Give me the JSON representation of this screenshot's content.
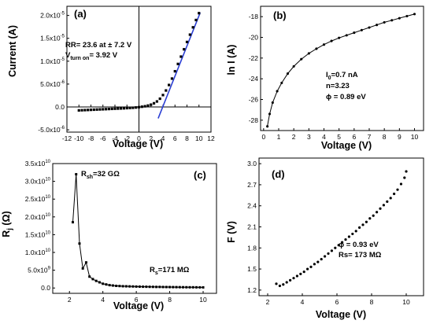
{
  "figure": {
    "panels": [
      "(a)",
      "(b)",
      "(c)",
      "(d)"
    ]
  },
  "chart_data": [
    {
      "id": "a",
      "type": "scatter",
      "panel_label": "(a)",
      "xlabel": "Voltage (V)",
      "ylabel": "Current (A)",
      "xlim": [
        -12,
        12
      ],
      "ylim": [
        -5.5e-06,
        2.2e-05
      ],
      "xticks": [
        -12,
        -10,
        -8,
        -6,
        -4,
        -2,
        0,
        2,
        4,
        6,
        8,
        10,
        12
      ],
      "xtick_labels": [
        "-12",
        "-10",
        "-8",
        "-6",
        "-4",
        "-2",
        "0",
        "2",
        "4",
        "6",
        "8",
        "10",
        "12"
      ],
      "yticks": [
        -5e-06,
        0,
        5e-06,
        1e-05,
        1.5e-05,
        2e-05
      ],
      "ytick_labels": [
        {
          "base": "-5.0x10",
          "exp": "-6"
        },
        {
          "base": "0.0",
          "exp": ""
        },
        {
          "base": "5.0x10",
          "exp": "-6"
        },
        {
          "base": "1.0x10",
          "exp": "-5"
        },
        {
          "base": "1.5x10",
          "exp": "-5"
        },
        {
          "base": "2.0x10",
          "exp": "-5"
        }
      ],
      "annotations": [
        {
          "text": "RR= 23.6 at ± 7.2 V"
        },
        {
          "prefix": "V",
          "sub": "turn on",
          "suffix": "= 3.92 V"
        }
      ],
      "fit_color": "#2b3fd4",
      "series": [
        {
          "x": [
            -10,
            -9.5,
            -9,
            -8.5,
            -8,
            -7.5,
            -7,
            -6.5,
            -6,
            -5.5,
            -5,
            -4.5,
            -4,
            -3.5,
            -3,
            -2.5,
            -2,
            -1.5,
            -1,
            -0.5,
            0,
            0.5,
            1,
            1.5,
            2,
            2.5,
            3,
            3.5,
            4,
            4.5,
            5,
            5.5,
            6,
            6.5,
            7,
            7.5,
            8,
            8.5,
            9,
            9.5,
            10
          ],
          "y": [
            -7.5e-07,
            -7.2e-07,
            -6.9e-07,
            -6.6e-07,
            -6.3e-07,
            -6e-07,
            -5.7e-07,
            -5.4e-07,
            -5.1e-07,
            -4.8e-07,
            -4.5e-07,
            -4.2e-07,
            -3.9e-07,
            -3.6e-07,
            -3.3e-07,
            -3e-07,
            -2.6e-07,
            -2.2e-07,
            -1.8e-07,
            -1.2e-07,
            -5e-08,
            5e-08,
            1.5e-07,
            3e-07,
            5e-07,
            8e-07,
            1.2e-06,
            1.8e-06,
            2.6e-06,
            3.6e-06,
            4.8e-06,
            6.2e-06,
            7.8e-06,
            9.4e-06,
            1.1e-05,
            1.26e-05,
            1.42e-05,
            1.58e-05,
            1.74e-05,
            1.9e-05,
            2.05e-05
          ]
        }
      ],
      "fit_line": {
        "x": [
          3.2,
          10.2
        ],
        "y": [
          -2.5e-06,
          2.06e-05
        ]
      }
    },
    {
      "id": "b",
      "type": "line",
      "panel_label": "(b)",
      "xlabel": "Voltage (V)",
      "ylabel": "ln I (A)",
      "xlim": [
        -0.2,
        10.6
      ],
      "ylim": [
        -29,
        -17
      ],
      "xticks": [
        0,
        1,
        2,
        3,
        4,
        5,
        6,
        7,
        8,
        9,
        10
      ],
      "xtick_labels": [
        "0",
        "1",
        "2",
        "3",
        "4",
        "5",
        "6",
        "7",
        "8",
        "9",
        "10"
      ],
      "yticks": [
        -28,
        -26,
        -24,
        -22,
        -20,
        -18
      ],
      "ytick_labels": [
        "-28",
        "-26",
        "-24",
        "-22",
        "-20",
        "-18"
      ],
      "annotations": [
        {
          "prefix": "I",
          "sub": "0",
          "suffix": "=0.7 nA"
        },
        {
          "text": "n=3.23"
        },
        {
          "text": "ϕ = 0.89 eV"
        }
      ],
      "series": [
        {
          "x": [
            0.25,
            0.4,
            0.6,
            0.9,
            1.2,
            1.6,
            2.0,
            2.5,
            3.0,
            3.5,
            4.0,
            4.5,
            5.0,
            5.5,
            6.0,
            6.5,
            7.0,
            7.5,
            8.0,
            8.5,
            9.0,
            9.5,
            10.0
          ],
          "y": [
            -28.6,
            -27.4,
            -26.3,
            -25.2,
            -24.4,
            -23.5,
            -22.8,
            -22.1,
            -21.55,
            -21.1,
            -20.7,
            -20.35,
            -20.05,
            -19.8,
            -19.55,
            -19.3,
            -19.05,
            -18.8,
            -18.55,
            -18.35,
            -18.15,
            -17.95,
            -17.75
          ]
        }
      ]
    },
    {
      "id": "c",
      "type": "line",
      "panel_label": "(c)",
      "xlabel": "Voltage (V)",
      "ylabel_main": "R",
      "ylabel_sub": "j",
      "ylabel_unit": " (Ω)",
      "xlim": [
        1,
        10.8
      ],
      "ylim": [
        -1500000000.0,
        35000000000.0
      ],
      "xticks": [
        2,
        4,
        6,
        8,
        10
      ],
      "xtick_labels": [
        "2",
        "4",
        "6",
        "8",
        "10"
      ],
      "yticks": [
        0,
        5000000000.0,
        10000000000.0,
        15000000000.0,
        20000000000.0,
        25000000000.0,
        30000000000.0,
        35000000000.0
      ],
      "ytick_labels": [
        {
          "base": "0.0",
          "exp": ""
        },
        {
          "base": "5.0x10",
          "exp": "9"
        },
        {
          "base": "1.0x10",
          "exp": "10"
        },
        {
          "base": "1.5x10",
          "exp": "10"
        },
        {
          "base": "2.0x10",
          "exp": "10"
        },
        {
          "base": "2.5x10",
          "exp": "10"
        },
        {
          "base": "3.0x10",
          "exp": "10"
        },
        {
          "base": "3.5x10",
          "exp": "10"
        }
      ],
      "annotations": [
        {
          "prefix": "R",
          "sub": "sh",
          "suffix": "=32 GΩ"
        },
        {
          "prefix": "R",
          "sub": "s",
          "suffix": "=171 MΩ"
        }
      ],
      "series": [
        {
          "x": [
            2.2,
            2.4,
            2.6,
            2.8,
            3.0,
            3.2,
            3.4,
            3.6,
            3.8,
            4.0,
            4.2,
            4.4,
            4.6,
            4.8,
            5.0,
            5.2,
            5.4,
            5.6,
            5.8,
            6.0,
            6.2,
            6.4,
            6.6,
            6.8,
            7.0,
            7.2,
            7.4,
            7.6,
            7.8,
            8.0,
            8.2,
            8.4,
            8.6,
            8.8,
            9.0,
            9.2,
            9.4,
            9.6,
            9.8,
            10.0
          ],
          "y": [
            18500000000.0,
            32000000000.0,
            12500000000.0,
            5500000000.0,
            7200000000.0,
            3200000000.0,
            2500000000.0,
            2000000000.0,
            1600000000.0,
            1200000000.0,
            1000000000.0,
            800000000.0,
            700000000.0,
            600000000.0,
            550000000.0,
            500000000.0,
            480000000.0,
            450000000.0,
            430000000.0,
            400000000.0,
            380000000.0,
            360000000.0,
            350000000.0,
            330000000.0,
            320000000.0,
            300000000.0,
            300000000.0,
            280000000.0,
            270000000.0,
            260000000.0,
            250000000.0,
            240000000.0,
            230000000.0,
            220000000.0,
            210000000.0,
            200000000.0,
            200000000.0,
            190000000.0,
            180000000.0,
            171000000.0
          ]
        }
      ]
    },
    {
      "id": "d",
      "type": "scatter",
      "panel_label": "(d)",
      "xlabel": "Voltage (V)",
      "ylabel": "F (V)",
      "xlim": [
        1.5,
        11
      ],
      "ylim": [
        1.12,
        3.08
      ],
      "xticks": [
        2,
        4,
        6,
        8,
        10
      ],
      "xtick_labels": [
        "2",
        "4",
        "6",
        "8",
        "10"
      ],
      "yticks": [
        1.2,
        1.5,
        1.8,
        2.1,
        2.4,
        2.7,
        3.0
      ],
      "ytick_labels": [
        "1.2",
        "1.5",
        "1.8",
        "2.1",
        "2.4",
        "2.7",
        "3.0"
      ],
      "annotations": [
        {
          "text": "ϕ = 0.93 eV"
        },
        {
          "text": "Rs= 173 MΩ"
        }
      ],
      "series": [
        {
          "x": [
            2.5,
            2.7,
            2.9,
            3.1,
            3.3,
            3.5,
            3.7,
            3.9,
            4.1,
            4.3,
            4.5,
            4.7,
            4.9,
            5.1,
            5.3,
            5.5,
            5.7,
            5.9,
            6.1,
            6.3,
            6.5,
            6.7,
            6.9,
            7.1,
            7.3,
            7.5,
            7.7,
            7.9,
            8.1,
            8.3,
            8.5,
            8.7,
            8.9,
            9.1,
            9.3,
            9.5,
            9.7,
            9.9,
            10.0
          ],
          "y": [
            1.29,
            1.26,
            1.28,
            1.31,
            1.34,
            1.37,
            1.4,
            1.43,
            1.46,
            1.5,
            1.53,
            1.57,
            1.6,
            1.64,
            1.68,
            1.72,
            1.76,
            1.8,
            1.84,
            1.88,
            1.92,
            1.96,
            2.0,
            2.04,
            2.09,
            2.13,
            2.17,
            2.22,
            2.26,
            2.31,
            2.36,
            2.41,
            2.46,
            2.51,
            2.57,
            2.63,
            2.71,
            2.8,
            2.89
          ]
        }
      ]
    }
  ]
}
